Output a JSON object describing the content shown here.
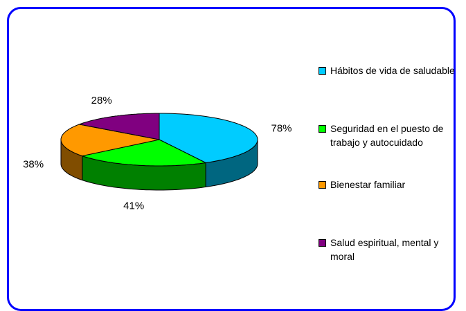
{
  "chart_data": {
    "type": "pie",
    "categories": [
      "Hábitos de vida de saludable",
      "Seguridad en el puesto de trabajo y autocuidado",
      "Bienestar familiar",
      "Salud espiritual, mental y moral"
    ],
    "values": [
      78,
      41,
      38,
      28
    ],
    "value_labels": [
      "78%",
      "41%",
      "38%",
      "28%"
    ],
    "colors": [
      "#00ccff",
      "#00ff00",
      "#ff9900",
      "#800080"
    ],
    "legend": "right"
  }
}
